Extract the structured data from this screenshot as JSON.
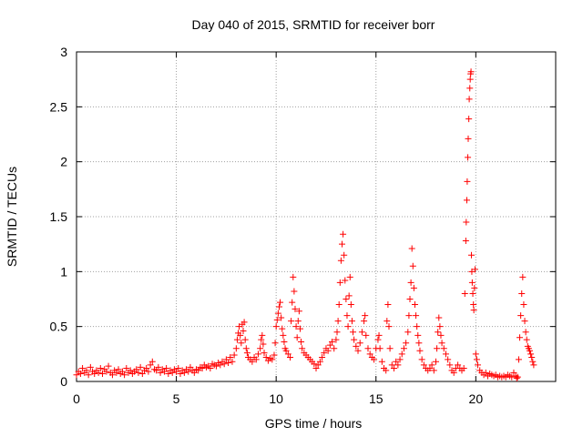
{
  "chart_data": {
    "type": "scatter",
    "title": "Day 040 of 2015, SRMTID for receiver borr",
    "xlabel": "GPS time / hours",
    "ylabel": "SRMTID / TECUs",
    "xlim": [
      0,
      24
    ],
    "ylim": [
      0,
      3
    ],
    "xticks": [
      0,
      5,
      10,
      15,
      20
    ],
    "xtick_labels": [
      "0",
      "5",
      "10",
      "15",
      "20"
    ],
    "yticks": [
      0,
      0.5,
      1,
      1.5,
      2,
      2.5,
      3
    ],
    "ytick_labels": [
      "0",
      "0.5",
      "1",
      "1.5",
      "2",
      "2.5",
      "3"
    ],
    "grid": true,
    "marker": "+",
    "series": [
      {
        "name": "SRMTID",
        "color": "#ff0000",
        "points": [
          [
            0.0,
            0.06
          ],
          [
            0.1,
            0.09
          ],
          [
            0.2,
            0.07
          ],
          [
            0.3,
            0.12
          ],
          [
            0.4,
            0.08
          ],
          [
            0.5,
            0.1
          ],
          [
            0.6,
            0.06
          ],
          [
            0.7,
            0.13
          ],
          [
            0.8,
            0.09
          ],
          [
            0.9,
            0.07
          ],
          [
            1.0,
            0.1
          ],
          [
            1.1,
            0.08
          ],
          [
            1.2,
            0.12
          ],
          [
            1.3,
            0.07
          ],
          [
            1.4,
            0.11
          ],
          [
            1.5,
            0.09
          ],
          [
            1.6,
            0.14
          ],
          [
            1.7,
            0.08
          ],
          [
            1.8,
            0.06
          ],
          [
            1.9,
            0.1
          ],
          [
            2.0,
            0.08
          ],
          [
            2.1,
            0.11
          ],
          [
            2.2,
            0.07
          ],
          [
            2.3,
            0.09
          ],
          [
            2.4,
            0.06
          ],
          [
            2.5,
            0.12
          ],
          [
            2.6,
            0.08
          ],
          [
            2.7,
            0.1
          ],
          [
            2.8,
            0.07
          ],
          [
            2.9,
            0.09
          ],
          [
            3.0,
            0.11
          ],
          [
            3.1,
            0.08
          ],
          [
            3.2,
            0.13
          ],
          [
            3.3,
            0.07
          ],
          [
            3.4,
            0.1
          ],
          [
            3.5,
            0.12
          ],
          [
            3.6,
            0.09
          ],
          [
            3.7,
            0.15
          ],
          [
            3.8,
            0.18
          ],
          [
            3.9,
            0.11
          ],
          [
            4.0,
            0.1
          ],
          [
            4.1,
            0.13
          ],
          [
            4.2,
            0.08
          ],
          [
            4.3,
            0.11
          ],
          [
            4.4,
            0.09
          ],
          [
            4.5,
            0.12
          ],
          [
            4.6,
            0.07
          ],
          [
            4.7,
            0.1
          ],
          [
            4.8,
            0.08
          ],
          [
            4.9,
            0.11
          ],
          [
            5.0,
            0.09
          ],
          [
            5.1,
            0.12
          ],
          [
            5.2,
            0.07
          ],
          [
            5.3,
            0.1
          ],
          [
            5.4,
            0.08
          ],
          [
            5.5,
            0.11
          ],
          [
            5.6,
            0.09
          ],
          [
            5.7,
            0.13
          ],
          [
            5.8,
            0.1
          ],
          [
            5.9,
            0.08
          ],
          [
            6.0,
            0.11
          ],
          [
            6.1,
            0.1
          ],
          [
            6.2,
            0.13
          ],
          [
            6.3,
            0.12
          ],
          [
            6.4,
            0.15
          ],
          [
            6.5,
            0.13
          ],
          [
            6.6,
            0.14
          ],
          [
            6.7,
            0.12
          ],
          [
            6.8,
            0.16
          ],
          [
            6.9,
            0.15
          ],
          [
            7.0,
            0.14
          ],
          [
            7.1,
            0.17
          ],
          [
            7.2,
            0.15
          ],
          [
            7.3,
            0.18
          ],
          [
            7.4,
            0.16
          ],
          [
            7.5,
            0.2
          ],
          [
            7.6,
            0.17
          ],
          [
            7.7,
            0.22
          ],
          [
            7.8,
            0.18
          ],
          [
            7.9,
            0.24
          ],
          [
            8.0,
            0.3
          ],
          [
            8.05,
            0.38
          ],
          [
            8.1,
            0.44
          ],
          [
            8.15,
            0.5
          ],
          [
            8.2,
            0.42
          ],
          [
            8.25,
            0.35
          ],
          [
            8.3,
            0.52
          ],
          [
            8.35,
            0.46
          ],
          [
            8.4,
            0.54
          ],
          [
            8.45,
            0.38
          ],
          [
            8.5,
            0.3
          ],
          [
            8.55,
            0.26
          ],
          [
            8.6,
            0.22
          ],
          [
            8.7,
            0.2
          ],
          [
            8.8,
            0.18
          ],
          [
            8.9,
            0.22
          ],
          [
            9.0,
            0.2
          ],
          [
            9.1,
            0.25
          ],
          [
            9.2,
            0.3
          ],
          [
            9.25,
            0.38
          ],
          [
            9.3,
            0.42
          ],
          [
            9.35,
            0.34
          ],
          [
            9.4,
            0.26
          ],
          [
            9.5,
            0.22
          ],
          [
            9.6,
            0.19
          ],
          [
            9.7,
            0.21
          ],
          [
            9.8,
            0.2
          ],
          [
            9.9,
            0.24
          ],
          [
            9.95,
            0.35
          ],
          [
            10.0,
            0.5
          ],
          [
            10.05,
            0.56
          ],
          [
            10.1,
            0.62
          ],
          [
            10.15,
            0.68
          ],
          [
            10.2,
            0.72
          ],
          [
            10.25,
            0.58
          ],
          [
            10.3,
            0.48
          ],
          [
            10.35,
            0.42
          ],
          [
            10.4,
            0.36
          ],
          [
            10.45,
            0.3
          ],
          [
            10.5,
            0.28
          ],
          [
            10.6,
            0.25
          ],
          [
            10.7,
            0.22
          ],
          [
            10.75,
            0.55
          ],
          [
            10.8,
            0.72
          ],
          [
            10.85,
            0.95
          ],
          [
            10.9,
            0.82
          ],
          [
            10.95,
            0.66
          ],
          [
            11.0,
            0.5
          ],
          [
            11.05,
            0.4
          ],
          [
            11.1,
            0.55
          ],
          [
            11.15,
            0.64
          ],
          [
            11.2,
            0.48
          ],
          [
            11.25,
            0.36
          ],
          [
            11.3,
            0.3
          ],
          [
            11.4,
            0.26
          ],
          [
            11.5,
            0.24
          ],
          [
            11.6,
            0.22
          ],
          [
            11.7,
            0.2
          ],
          [
            11.8,
            0.18
          ],
          [
            11.9,
            0.16
          ],
          [
            12.0,
            0.12
          ],
          [
            12.1,
            0.15
          ],
          [
            12.2,
            0.18
          ],
          [
            12.3,
            0.22
          ],
          [
            12.4,
            0.26
          ],
          [
            12.5,
            0.3
          ],
          [
            12.6,
            0.28
          ],
          [
            12.7,
            0.33
          ],
          [
            12.8,
            0.36
          ],
          [
            12.9,
            0.3
          ],
          [
            13.0,
            0.38
          ],
          [
            13.05,
            0.45
          ],
          [
            13.1,
            0.55
          ],
          [
            13.15,
            0.7
          ],
          [
            13.2,
            0.9
          ],
          [
            13.25,
            1.1
          ],
          [
            13.3,
            1.25
          ],
          [
            13.35,
            1.34
          ],
          [
            13.4,
            1.15
          ],
          [
            13.45,
            0.92
          ],
          [
            13.5,
            0.75
          ],
          [
            13.55,
            0.6
          ],
          [
            13.6,
            0.5
          ],
          [
            13.65,
            0.78
          ],
          [
            13.7,
            0.95
          ],
          [
            13.75,
            0.7
          ],
          [
            13.8,
            0.55
          ],
          [
            13.85,
            0.45
          ],
          [
            13.9,
            0.38
          ],
          [
            14.0,
            0.32
          ],
          [
            14.1,
            0.28
          ],
          [
            14.2,
            0.35
          ],
          [
            14.3,
            0.45
          ],
          [
            14.4,
            0.55
          ],
          [
            14.45,
            0.6
          ],
          [
            14.5,
            0.42
          ],
          [
            14.6,
            0.3
          ],
          [
            14.7,
            0.25
          ],
          [
            14.8,
            0.22
          ],
          [
            14.9,
            0.2
          ],
          [
            15.0,
            0.3
          ],
          [
            15.1,
            0.38
          ],
          [
            15.15,
            0.42
          ],
          [
            15.2,
            0.3
          ],
          [
            15.3,
            0.18
          ],
          [
            15.4,
            0.12
          ],
          [
            15.5,
            0.1
          ],
          [
            15.55,
            0.55
          ],
          [
            15.6,
            0.7
          ],
          [
            15.65,
            0.5
          ],
          [
            15.7,
            0.3
          ],
          [
            15.8,
            0.15
          ],
          [
            15.9,
            0.12
          ],
          [
            16.0,
            0.18
          ],
          [
            16.1,
            0.15
          ],
          [
            16.2,
            0.2
          ],
          [
            16.3,
            0.25
          ],
          [
            16.4,
            0.3
          ],
          [
            16.5,
            0.35
          ],
          [
            16.6,
            0.45
          ],
          [
            16.65,
            0.6
          ],
          [
            16.7,
            0.75
          ],
          [
            16.75,
            0.9
          ],
          [
            16.8,
            1.21
          ],
          [
            16.85,
            1.05
          ],
          [
            16.9,
            0.85
          ],
          [
            16.95,
            0.7
          ],
          [
            17.0,
            0.6
          ],
          [
            17.05,
            0.5
          ],
          [
            17.1,
            0.42
          ],
          [
            17.15,
            0.35
          ],
          [
            17.2,
            0.28
          ],
          [
            17.3,
            0.2
          ],
          [
            17.4,
            0.15
          ],
          [
            17.5,
            0.12
          ],
          [
            17.6,
            0.1
          ],
          [
            17.7,
            0.12
          ],
          [
            17.8,
            0.15
          ],
          [
            17.9,
            0.1
          ],
          [
            18.0,
            0.18
          ],
          [
            18.05,
            0.3
          ],
          [
            18.1,
            0.45
          ],
          [
            18.15,
            0.58
          ],
          [
            18.2,
            0.5
          ],
          [
            18.25,
            0.42
          ],
          [
            18.3,
            0.35
          ],
          [
            18.4,
            0.3
          ],
          [
            18.5,
            0.25
          ],
          [
            18.6,
            0.2
          ],
          [
            18.7,
            0.15
          ],
          [
            18.8,
            0.1
          ],
          [
            18.9,
            0.08
          ],
          [
            19.0,
            0.12
          ],
          [
            19.1,
            0.15
          ],
          [
            19.2,
            0.12
          ],
          [
            19.3,
            0.1
          ],
          [
            19.4,
            0.12
          ],
          [
            19.45,
            0.8
          ],
          [
            19.5,
            1.28
          ],
          [
            19.52,
            1.45
          ],
          [
            19.55,
            1.65
          ],
          [
            19.57,
            1.82
          ],
          [
            19.6,
            2.04
          ],
          [
            19.62,
            2.21
          ],
          [
            19.65,
            2.39
          ],
          [
            19.67,
            2.57
          ],
          [
            19.7,
            2.67
          ],
          [
            19.72,
            2.75
          ],
          [
            19.74,
            2.8
          ],
          [
            19.76,
            2.82
          ],
          [
            19.78,
            1.15
          ],
          [
            19.8,
            1.0
          ],
          [
            19.82,
            0.9
          ],
          [
            19.85,
            0.8
          ],
          [
            19.88,
            0.7
          ],
          [
            19.9,
            0.65
          ],
          [
            19.93,
            0.85
          ],
          [
            19.96,
            1.02
          ],
          [
            20.0,
            0.25
          ],
          [
            20.05,
            0.2
          ],
          [
            20.1,
            0.15
          ],
          [
            20.2,
            0.1
          ],
          [
            20.3,
            0.08
          ],
          [
            20.4,
            0.06
          ],
          [
            20.5,
            0.08
          ],
          [
            20.6,
            0.05
          ],
          [
            20.7,
            0.07
          ],
          [
            20.8,
            0.06
          ],
          [
            20.9,
            0.05
          ],
          [
            21.0,
            0.06
          ],
          [
            21.1,
            0.04
          ],
          [
            21.2,
            0.05
          ],
          [
            21.3,
            0.04
          ],
          [
            21.4,
            0.05
          ],
          [
            21.5,
            0.04
          ],
          [
            21.6,
            0.06
          ],
          [
            21.7,
            0.05
          ],
          [
            21.8,
            0.04
          ],
          [
            21.9,
            0.08
          ],
          [
            22.0,
            0.05
          ],
          [
            22.05,
            0.03
          ],
          [
            22.1,
            0.04
          ],
          [
            22.15,
            0.2
          ],
          [
            22.2,
            0.4
          ],
          [
            22.25,
            0.6
          ],
          [
            22.3,
            0.8
          ],
          [
            22.35,
            0.95
          ],
          [
            22.4,
            0.7
          ],
          [
            22.45,
            0.55
          ],
          [
            22.5,
            0.45
          ],
          [
            22.55,
            0.38
          ],
          [
            22.6,
            0.32
          ],
          [
            22.65,
            0.3
          ],
          [
            22.7,
            0.28
          ],
          [
            22.75,
            0.25
          ],
          [
            22.8,
            0.22
          ],
          [
            22.85,
            0.18
          ],
          [
            22.9,
            0.15
          ]
        ]
      }
    ]
  }
}
